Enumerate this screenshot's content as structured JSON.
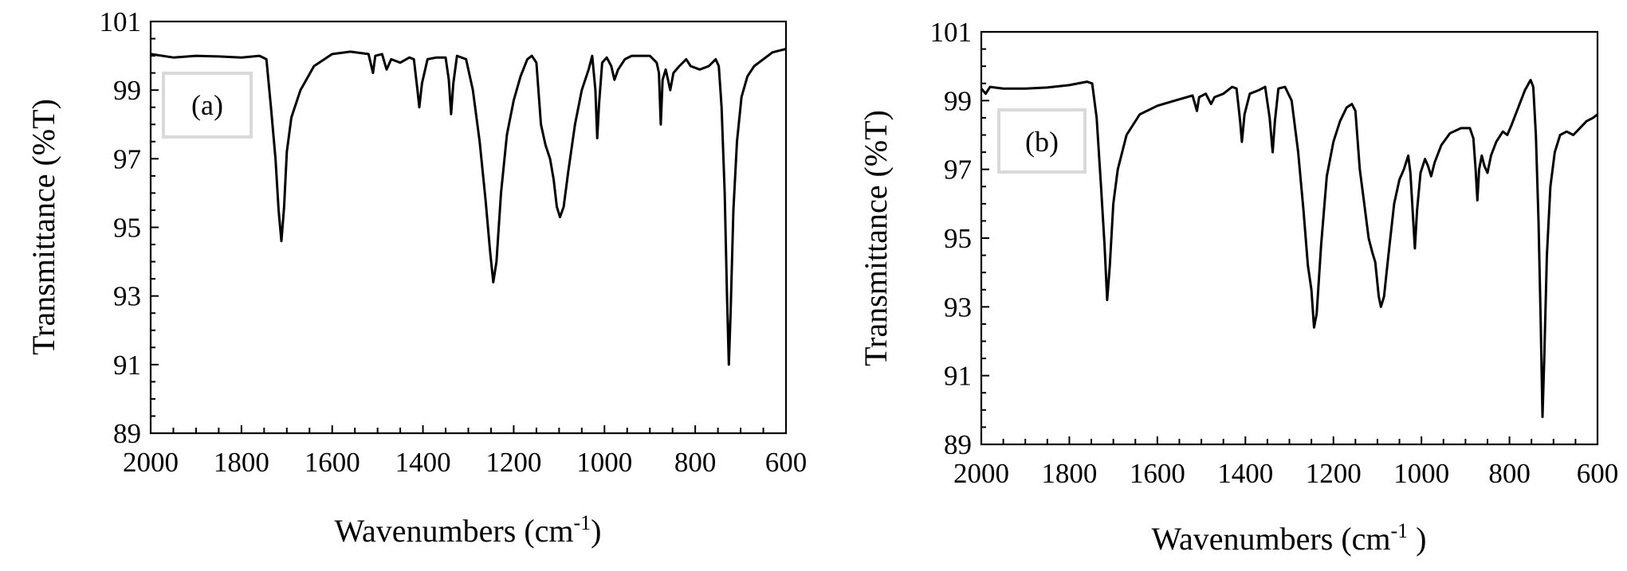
{
  "chart_data": [
    {
      "type": "line",
      "panel_label": "(a)",
      "xlabel": "Wavenumbers (cm",
      "xlabel_sup": "-1",
      "xlabel_close": ")",
      "ylabel": "Transmittance (%T)",
      "xlim": [
        2000,
        600
      ],
      "ylim": [
        89,
        101
      ],
      "x_reversed": true,
      "grid": false,
      "xticks": [
        2000,
        1800,
        1600,
        1400,
        1200,
        1000,
        800,
        600
      ],
      "yticks": [
        89,
        91,
        93,
        95,
        97,
        99,
        101
      ],
      "series": [
        {
          "color": "#000000",
          "points": [
            [
              2000,
              100.05
            ],
            [
              1950,
              99.95
            ],
            [
              1900,
              100.0
            ],
            [
              1850,
              99.98
            ],
            [
              1800,
              99.95
            ],
            [
              1760,
              100.0
            ],
            [
              1745,
              99.9
            ],
            [
              1735,
              98.5
            ],
            [
              1725,
              97.0
            ],
            [
              1718,
              95.5
            ],
            [
              1712,
              94.6
            ],
            [
              1706,
              95.6
            ],
            [
              1700,
              97.2
            ],
            [
              1690,
              98.2
            ],
            [
              1670,
              99.0
            ],
            [
              1640,
              99.7
            ],
            [
              1600,
              100.05
            ],
            [
              1560,
              100.12
            ],
            [
              1520,
              100.05
            ],
            [
              1510,
              99.5
            ],
            [
              1505,
              100.0
            ],
            [
              1490,
              100.05
            ],
            [
              1480,
              99.6
            ],
            [
              1470,
              99.9
            ],
            [
              1450,
              99.8
            ],
            [
              1430,
              99.95
            ],
            [
              1420,
              99.9
            ],
            [
              1412,
              99.0
            ],
            [
              1408,
              98.5
            ],
            [
              1402,
              99.2
            ],
            [
              1390,
              99.9
            ],
            [
              1370,
              99.95
            ],
            [
              1350,
              99.95
            ],
            [
              1343,
              99.3
            ],
            [
              1338,
              98.3
            ],
            [
              1333,
              99.2
            ],
            [
              1325,
              100.0
            ],
            [
              1305,
              99.9
            ],
            [
              1290,
              99.0
            ],
            [
              1275,
              97.5
            ],
            [
              1262,
              95.8
            ],
            [
              1252,
              94.3
            ],
            [
              1245,
              93.4
            ],
            [
              1238,
              94.0
            ],
            [
              1228,
              96.0
            ],
            [
              1215,
              97.7
            ],
            [
              1200,
              98.7
            ],
            [
              1185,
              99.4
            ],
            [
              1170,
              99.9
            ],
            [
              1160,
              100.0
            ],
            [
              1150,
              99.8
            ],
            [
              1140,
              98.0
            ],
            [
              1130,
              97.4
            ],
            [
              1120,
              97.0
            ],
            [
              1112,
              96.4
            ],
            [
              1105,
              95.6
            ],
            [
              1098,
              95.3
            ],
            [
              1090,
              95.6
            ],
            [
              1080,
              96.6
            ],
            [
              1065,
              98.0
            ],
            [
              1050,
              99.0
            ],
            [
              1035,
              99.6
            ],
            [
              1027,
              100.0
            ],
            [
              1020,
              99.0
            ],
            [
              1016,
              97.6
            ],
            [
              1012,
              98.6
            ],
            [
              1005,
              99.8
            ],
            [
              995,
              99.95
            ],
            [
              985,
              99.7
            ],
            [
              978,
              99.3
            ],
            [
              970,
              99.6
            ],
            [
              955,
              99.9
            ],
            [
              940,
              100.0
            ],
            [
              900,
              100.0
            ],
            [
              885,
              99.8
            ],
            [
              880,
              99.5
            ],
            [
              876,
              98.0
            ],
            [
              872,
              99.3
            ],
            [
              865,
              99.6
            ],
            [
              860,
              99.3
            ],
            [
              855,
              99.0
            ],
            [
              848,
              99.5
            ],
            [
              835,
              99.7
            ],
            [
              820,
              99.9
            ],
            [
              810,
              99.7
            ],
            [
              790,
              99.6
            ],
            [
              770,
              99.7
            ],
            [
              755,
              99.9
            ],
            [
              748,
              99.7
            ],
            [
              742,
              98.5
            ],
            [
              735,
              96.0
            ],
            [
              730,
              93.0
            ],
            [
              726,
              91.0
            ],
            [
              722,
              92.5
            ],
            [
              716,
              95.5
            ],
            [
              708,
              97.5
            ],
            [
              698,
              98.8
            ],
            [
              685,
              99.4
            ],
            [
              670,
              99.7
            ],
            [
              650,
              99.9
            ],
            [
              630,
              100.1
            ],
            [
              615,
              100.15
            ],
            [
              600,
              100.2
            ]
          ]
        }
      ]
    },
    {
      "type": "line",
      "panel_label": "(b)",
      "xlabel": "Wavenumbers (cm",
      "xlabel_sup": "-1",
      "xlabel_close": " )",
      "ylabel": "Transmittance (%T)",
      "xlim": [
        2000,
        600
      ],
      "ylim": [
        89,
        101
      ],
      "x_reversed": true,
      "grid": false,
      "xticks": [
        2000,
        1800,
        1600,
        1400,
        1200,
        1000,
        800,
        600
      ],
      "yticks": [
        89,
        91,
        93,
        95,
        97,
        99,
        101
      ],
      "series": [
        {
          "color": "#000000",
          "points": [
            [
              2000,
              99.35
            ],
            [
              1990,
              99.2
            ],
            [
              1980,
              99.4
            ],
            [
              1950,
              99.35
            ],
            [
              1900,
              99.35
            ],
            [
              1850,
              99.38
            ],
            [
              1800,
              99.45
            ],
            [
              1760,
              99.55
            ],
            [
              1748,
              99.5
            ],
            [
              1738,
              98.5
            ],
            [
              1728,
              96.5
            ],
            [
              1720,
              94.8
            ],
            [
              1714,
              93.2
            ],
            [
              1708,
              94.2
            ],
            [
              1700,
              96.0
            ],
            [
              1690,
              97.0
            ],
            [
              1670,
              98.0
            ],
            [
              1640,
              98.6
            ],
            [
              1600,
              98.85
            ],
            [
              1560,
              99.0
            ],
            [
              1520,
              99.15
            ],
            [
              1510,
              98.7
            ],
            [
              1505,
              99.1
            ],
            [
              1490,
              99.2
            ],
            [
              1478,
              98.9
            ],
            [
              1470,
              99.1
            ],
            [
              1450,
              99.2
            ],
            [
              1430,
              99.4
            ],
            [
              1420,
              99.35
            ],
            [
              1412,
              98.4
            ],
            [
              1408,
              97.8
            ],
            [
              1402,
              98.6
            ],
            [
              1390,
              99.2
            ],
            [
              1370,
              99.3
            ],
            [
              1355,
              99.4
            ],
            [
              1345,
              98.5
            ],
            [
              1338,
              97.5
            ],
            [
              1333,
              98.4
            ],
            [
              1325,
              99.35
            ],
            [
              1310,
              99.4
            ],
            [
              1295,
              99.0
            ],
            [
              1280,
              97.5
            ],
            [
              1268,
              95.8
            ],
            [
              1258,
              94.2
            ],
            [
              1250,
              93.5
            ],
            [
              1244,
              92.4
            ],
            [
              1238,
              92.8
            ],
            [
              1228,
              94.8
            ],
            [
              1215,
              96.8
            ],
            [
              1200,
              97.8
            ],
            [
              1185,
              98.4
            ],
            [
              1170,
              98.8
            ],
            [
              1158,
              98.9
            ],
            [
              1150,
              98.7
            ],
            [
              1140,
              97.0
            ],
            [
              1130,
              96.0
            ],
            [
              1120,
              95.0
            ],
            [
              1112,
              94.6
            ],
            [
              1105,
              94.3
            ],
            [
              1097,
              93.3
            ],
            [
              1092,
              93.0
            ],
            [
              1085,
              93.3
            ],
            [
              1075,
              94.5
            ],
            [
              1062,
              96.0
            ],
            [
              1050,
              96.7
            ],
            [
              1040,
              97.0
            ],
            [
              1030,
              97.4
            ],
            [
              1025,
              96.9
            ],
            [
              1020,
              95.8
            ],
            [
              1015,
              94.7
            ],
            [
              1010,
              95.8
            ],
            [
              1002,
              96.9
            ],
            [
              992,
              97.3
            ],
            [
              985,
              97.1
            ],
            [
              978,
              96.8
            ],
            [
              970,
              97.2
            ],
            [
              955,
              97.7
            ],
            [
              935,
              98.05
            ],
            [
              910,
              98.2
            ],
            [
              890,
              98.2
            ],
            [
              882,
              97.9
            ],
            [
              877,
              97.0
            ],
            [
              873,
              96.1
            ],
            [
              869,
              97.0
            ],
            [
              863,
              97.4
            ],
            [
              857,
              97.1
            ],
            [
              850,
              96.9
            ],
            [
              842,
              97.4
            ],
            [
              830,
              97.8
            ],
            [
              815,
              98.1
            ],
            [
              805,
              98.0
            ],
            [
              795,
              98.3
            ],
            [
              780,
              98.8
            ],
            [
              765,
              99.3
            ],
            [
              752,
              99.6
            ],
            [
              746,
              99.4
            ],
            [
              740,
              98.0
            ],
            [
              734,
              95.5
            ],
            [
              729,
              92.5
            ],
            [
              725,
              89.8
            ],
            [
              721,
              91.5
            ],
            [
              715,
              94.5
            ],
            [
              707,
              96.5
            ],
            [
              697,
              97.5
            ],
            [
              685,
              98.0
            ],
            [
              670,
              98.1
            ],
            [
              655,
              98.0
            ],
            [
              640,
              98.2
            ],
            [
              625,
              98.4
            ],
            [
              610,
              98.5
            ],
            [
              600,
              98.6
            ]
          ]
        }
      ]
    }
  ]
}
